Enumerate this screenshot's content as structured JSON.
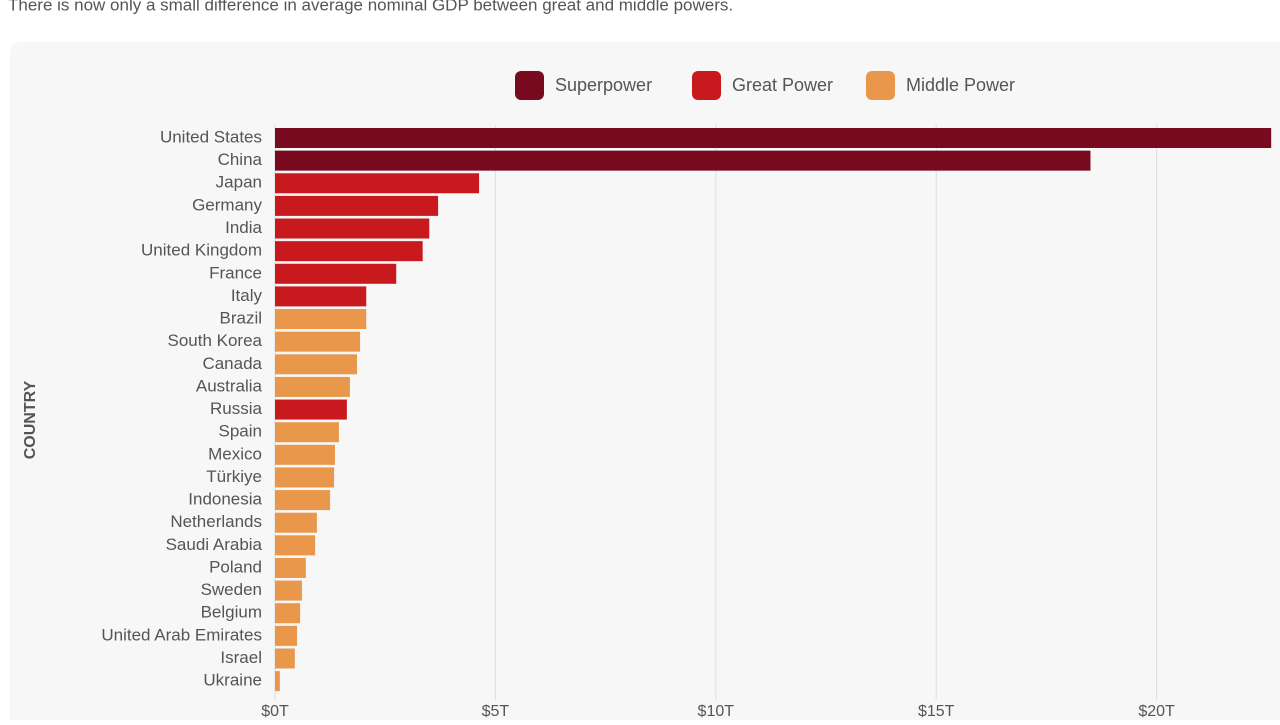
{
  "chart_data": {
    "type": "hbar",
    "subtitle": "There is now only a small difference in average nominal GDP between great and middle powers.",
    "y_label": "COUNTRY",
    "categories": [
      "United States",
      "China",
      "Japan",
      "Germany",
      "India",
      "United Kingdom",
      "France",
      "Italy",
      "Brazil",
      "South Korea",
      "Canada",
      "Australia",
      "Russia",
      "Spain",
      "Mexico",
      "Türkiye",
      "Indonesia",
      "Netherlands",
      "Saudi Arabia",
      "Poland",
      "Sweden",
      "Belgium",
      "United Arab Emirates",
      "Israel",
      "Ukraine"
    ],
    "series": [
      {
        "name": "Superpower",
        "color": "#780a1f",
        "values": [
          22.6,
          18.5,
          null,
          null,
          null,
          null,
          null,
          null,
          null,
          null,
          null,
          null,
          null,
          null,
          null,
          null,
          null,
          null,
          null,
          null,
          null,
          null,
          null,
          null,
          null
        ]
      },
      {
        "name": "Great Power",
        "color": "#c8191f",
        "values": [
          null,
          null,
          4.63,
          3.7,
          3.5,
          3.35,
          2.75,
          2.07,
          null,
          null,
          null,
          null,
          1.63,
          null,
          null,
          null,
          null,
          null,
          null,
          null,
          null,
          null,
          null,
          null,
          null
        ]
      },
      {
        "name": "Middle Power",
        "color": "#e8974b",
        "values": [
          null,
          null,
          null,
          null,
          null,
          null,
          null,
          null,
          2.07,
          1.93,
          1.86,
          1.7,
          null,
          1.45,
          1.36,
          1.34,
          1.25,
          0.95,
          0.91,
          0.7,
          0.61,
          0.57,
          0.5,
          0.45,
          0.11
        ]
      }
    ],
    "xlim": [
      0,
      22.8
    ],
    "xticks": [
      {
        "value": 0,
        "label": "$0T"
      },
      {
        "value": 5,
        "label": "$5T"
      },
      {
        "value": 10,
        "label": "$10T"
      },
      {
        "value": 15,
        "label": "$15T"
      },
      {
        "value": 20,
        "label": "$20T"
      }
    ],
    "grid": true,
    "legend": "top"
  }
}
